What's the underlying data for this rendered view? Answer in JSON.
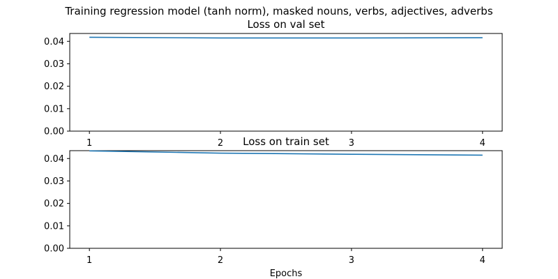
{
  "figure": {
    "suptitle": "Training regression model (tanh norm), masked nouns, verbs, adjectives, adverbs"
  },
  "chart_data": [
    {
      "type": "line",
      "title": "Loss on val set",
      "xlabel": "",
      "ylabel": "",
      "x": [
        1,
        2,
        3,
        4
      ],
      "series": [
        {
          "values": [
            0.0418,
            0.0415,
            0.0415,
            0.0416
          ],
          "color": "#1f77b4"
        }
      ],
      "xlim": [
        0.85,
        4.15
      ],
      "ylim": [
        0,
        0.0435
      ],
      "xticks": [
        "1",
        "2",
        "3",
        "4"
      ],
      "yticks": [
        "0.00",
        "0.01",
        "0.02",
        "0.03",
        "0.04"
      ],
      "grid": false
    },
    {
      "type": "line",
      "title": "Loss on train set",
      "xlabel": "Epochs",
      "ylabel": "",
      "x": [
        1,
        2,
        3,
        4
      ],
      "series": [
        {
          "values": [
            0.0434,
            0.0424,
            0.0419,
            0.0415
          ],
          "color": "#1f77b4"
        }
      ],
      "xlim": [
        0.85,
        4.15
      ],
      "ylim": [
        0,
        0.0435
      ],
      "xticks": [
        "1",
        "2",
        "3",
        "4"
      ],
      "yticks": [
        "0.00",
        "0.01",
        "0.02",
        "0.03",
        "0.04"
      ],
      "grid": false
    }
  ]
}
